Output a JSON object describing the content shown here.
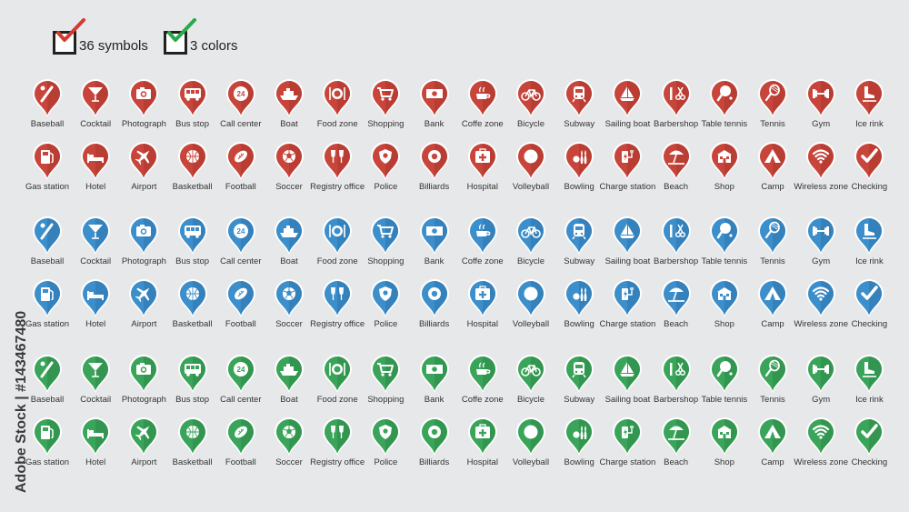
{
  "header": {
    "items": [
      {
        "label": "36 symbols",
        "check_color": "#d63a2f"
      },
      {
        "label": "3 colors",
        "check_color": "#2aa84a"
      }
    ]
  },
  "palette": {
    "red": {
      "fill": "#c8453b",
      "dark": "#a8342c"
    },
    "blue": {
      "fill": "#3c8fcb",
      "dark": "#2a72ab"
    },
    "green": {
      "fill": "#3aa55a",
      "dark": "#2b8545"
    }
  },
  "groups": [
    "red",
    "blue",
    "green"
  ],
  "symbols": [
    {
      "label": "Baseball",
      "icon": "baseball-icon"
    },
    {
      "label": "Cocktail",
      "icon": "cocktail-icon"
    },
    {
      "label": "Photograph",
      "icon": "camera-icon"
    },
    {
      "label": "Bus stop",
      "icon": "bus-icon"
    },
    {
      "label": "Call center",
      "icon": "24h-icon"
    },
    {
      "label": "Boat",
      "icon": "ship-icon"
    },
    {
      "label": "Food zone",
      "icon": "plate-icon"
    },
    {
      "label": "Shopping",
      "icon": "cart-icon"
    },
    {
      "label": "Bank",
      "icon": "banknote-icon"
    },
    {
      "label": "Coffe zone",
      "icon": "coffee-icon"
    },
    {
      "label": "Bicycle",
      "icon": "bicycle-icon"
    },
    {
      "label": "Subway",
      "icon": "train-icon"
    },
    {
      "label": "Sailing boat",
      "icon": "sailboat-icon"
    },
    {
      "label": "Barbershop",
      "icon": "scissors-icon"
    },
    {
      "label": "Table tennis",
      "icon": "paddle-icon"
    },
    {
      "label": "Tennis",
      "icon": "racket-icon"
    },
    {
      "label": "Gym",
      "icon": "dumbbell-icon"
    },
    {
      "label": "Ice rink",
      "icon": "skate-icon"
    },
    {
      "label": "Gas station",
      "icon": "fuel-icon"
    },
    {
      "label": "Hotel",
      "icon": "bed-icon"
    },
    {
      "label": "Airport",
      "icon": "plane-icon"
    },
    {
      "label": "Basketball",
      "icon": "basketball-icon"
    },
    {
      "label": "Football",
      "icon": "football-icon"
    },
    {
      "label": "Soccer",
      "icon": "soccer-ball-icon"
    },
    {
      "label": "Registry office",
      "icon": "glasses-icon"
    },
    {
      "label": "Police",
      "icon": "badge-icon"
    },
    {
      "label": "Billiards",
      "icon": "billiard-ball-icon"
    },
    {
      "label": "Hospital",
      "icon": "first-aid-icon"
    },
    {
      "label": "Volleyball",
      "icon": "volleyball-icon"
    },
    {
      "label": "Bowling",
      "icon": "bowling-icon"
    },
    {
      "label": "Charge station",
      "icon": "charger-icon"
    },
    {
      "label": "Beach",
      "icon": "umbrella-icon"
    },
    {
      "label": "Shop",
      "icon": "store-icon"
    },
    {
      "label": "Camp",
      "icon": "tent-icon"
    },
    {
      "label": "Wireless zone",
      "icon": "wifi-icon"
    },
    {
      "label": "Checking",
      "icon": "checkmark-icon"
    }
  ],
  "watermark": "Adobe Stock | #143467480"
}
